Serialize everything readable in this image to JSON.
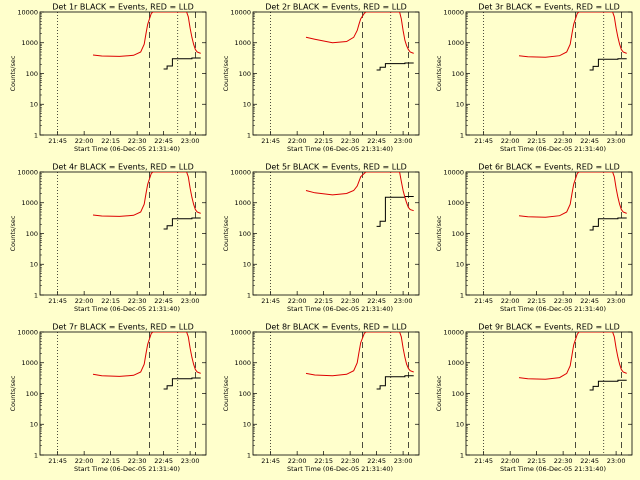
{
  "colors": {
    "background": "#ffffcc",
    "events": "#000000",
    "lld": "#dd0000"
  },
  "chart_data": [
    {
      "type": "line",
      "title": "Det 1r BLACK = Events, RED = LLD",
      "xlabel": "Start Time (06-Dec-05 21:31:40)",
      "ylabel": "Counts/sec",
      "y_scale": "log",
      "ylim": [
        1,
        10000
      ],
      "xticks": [
        "21:45",
        "22:00",
        "22:15",
        "22:30",
        "22:45",
        "23:00"
      ],
      "yticks": [
        "1",
        "10",
        "100",
        "1000",
        "10000"
      ],
      "grid": false,
      "series": [
        {
          "name": "Events",
          "color": "#000000",
          "x": [
            "22:45",
            "22:47",
            "22:47",
            "22:50",
            "22:50",
            "23:01",
            "23:01",
            "23:06"
          ],
          "y": [
            140,
            140,
            175,
            175,
            300,
            300,
            320,
            320
          ]
        },
        {
          "name": "LLD",
          "color": "#dd0000",
          "x": [
            "22:05",
            "22:10",
            "22:20",
            "22:28",
            "22:32",
            "22:34",
            "22:35",
            "22:36",
            "22:38",
            "22:39",
            "22:58",
            "22:59",
            "23:00",
            "23:01",
            "23:02",
            "23:03",
            "23:04",
            "23:06"
          ],
          "y": [
            400,
            370,
            360,
            390,
            500,
            900,
            2000,
            4000,
            9000,
            10000,
            10000,
            7000,
            3000,
            1500,
            900,
            600,
            500,
            450
          ]
        }
      ]
    },
    {
      "type": "line",
      "title": "Det 2r BLACK = Events, RED = LLD",
      "xlabel": "Start Time (06-Dec-05 21:31:40)",
      "ylabel": "Counts/sec",
      "y_scale": "log",
      "ylim": [
        1,
        10000
      ],
      "xticks": [
        "21:45",
        "22:00",
        "22:15",
        "22:30",
        "22:45",
        "23:00"
      ],
      "yticks": [
        "1",
        "10",
        "100",
        "1000",
        "10000"
      ],
      "grid": false,
      "series": [
        {
          "name": "Events",
          "color": "#000000",
          "x": [
            "22:45",
            "22:47",
            "22:47",
            "22:50",
            "22:50",
            "23:01",
            "23:01",
            "23:06"
          ],
          "y": [
            130,
            130,
            160,
            160,
            210,
            210,
            220,
            220
          ]
        },
        {
          "name": "LLD",
          "color": "#dd0000",
          "x": [
            "22:05",
            "22:10",
            "22:20",
            "22:28",
            "22:32",
            "22:34",
            "22:35",
            "22:36",
            "22:38",
            "22:39",
            "22:58",
            "22:59",
            "23:00",
            "23:01",
            "23:02",
            "23:03",
            "23:04",
            "23:06"
          ],
          "y": [
            1500,
            1300,
            1000,
            1100,
            1500,
            2500,
            4000,
            6000,
            9000,
            10000,
            10000,
            6000,
            2500,
            1200,
            800,
            600,
            500,
            450
          ]
        }
      ]
    },
    {
      "type": "line",
      "title": "Det 3r BLACK = Events, RED = LLD",
      "xlabel": "Start Time (06-Dec-05 21:31:40)",
      "ylabel": "Counts/sec",
      "y_scale": "log",
      "ylim": [
        1,
        10000
      ],
      "xticks": [
        "21:45",
        "22:00",
        "22:15",
        "22:30",
        "22:45",
        "23:00"
      ],
      "yticks": [
        "1",
        "10",
        "100",
        "1000",
        "10000"
      ],
      "grid": false,
      "series": [
        {
          "name": "Events",
          "color": "#000000",
          "x": [
            "22:45",
            "22:47",
            "22:47",
            "22:50",
            "22:50",
            "23:01",
            "23:01",
            "23:06"
          ],
          "y": [
            130,
            130,
            170,
            170,
            290,
            290,
            300,
            300
          ]
        },
        {
          "name": "LLD",
          "color": "#dd0000",
          "x": [
            "22:05",
            "22:10",
            "22:20",
            "22:28",
            "22:32",
            "22:34",
            "22:35",
            "22:36",
            "22:38",
            "22:39",
            "22:58",
            "22:59",
            "23:00",
            "23:01",
            "23:02",
            "23:03",
            "23:04",
            "23:06"
          ],
          "y": [
            380,
            350,
            340,
            380,
            500,
            900,
            2000,
            4000,
            9000,
            10000,
            10000,
            7000,
            3000,
            1500,
            900,
            600,
            500,
            450
          ]
        }
      ]
    },
    {
      "type": "line",
      "title": "Det 4r BLACK = Events, RED = LLD",
      "xlabel": "Start Time (06-Dec-05 21:31:40)",
      "ylabel": "Counts/sec",
      "y_scale": "log",
      "ylim": [
        1,
        10000
      ],
      "xticks": [
        "21:45",
        "22:00",
        "22:15",
        "22:30",
        "22:45",
        "23:00"
      ],
      "yticks": [
        "1",
        "10",
        "100",
        "1000",
        "10000"
      ],
      "grid": false,
      "series": [
        {
          "name": "Events",
          "color": "#000000",
          "x": [
            "22:45",
            "22:47",
            "22:47",
            "22:50",
            "22:50",
            "23:01",
            "23:01",
            "23:06"
          ],
          "y": [
            140,
            140,
            180,
            180,
            300,
            300,
            320,
            320
          ]
        },
        {
          "name": "LLD",
          "color": "#dd0000",
          "x": [
            "22:05",
            "22:10",
            "22:20",
            "22:28",
            "22:32",
            "22:34",
            "22:35",
            "22:36",
            "22:38",
            "22:39",
            "22:58",
            "22:59",
            "23:00",
            "23:01",
            "23:02",
            "23:03",
            "23:04",
            "23:06"
          ],
          "y": [
            400,
            370,
            360,
            390,
            500,
            900,
            2000,
            4000,
            9000,
            10000,
            10000,
            7000,
            3000,
            1500,
            900,
            600,
            500,
            450
          ]
        }
      ]
    },
    {
      "type": "line",
      "title": "Det 5r BLACK = Events, RED = LLD",
      "xlabel": "Start Time (06-Dec-05 21:31:40)",
      "ylabel": "Counts/sec",
      "y_scale": "log",
      "ylim": [
        1,
        10000
      ],
      "xticks": [
        "21:45",
        "22:00",
        "22:15",
        "22:30",
        "22:45",
        "23:00"
      ],
      "yticks": [
        "1",
        "10",
        "100",
        "1000",
        "10000"
      ],
      "grid": false,
      "series": [
        {
          "name": "Events",
          "color": "#000000",
          "x": [
            "22:45",
            "22:47",
            "22:47",
            "22:50",
            "22:50",
            "23:01",
            "23:01",
            "23:06"
          ],
          "y": [
            170,
            170,
            250,
            250,
            1500,
            1500,
            1600,
            1600
          ]
        },
        {
          "name": "LLD",
          "color": "#dd0000",
          "x": [
            "22:05",
            "22:10",
            "22:20",
            "22:28",
            "22:32",
            "22:34",
            "22:35",
            "22:36",
            "22:38",
            "22:39",
            "22:58",
            "22:59",
            "23:00",
            "23:01",
            "23:02",
            "23:03",
            "23:04",
            "23:06"
          ],
          "y": [
            2500,
            2100,
            1800,
            2000,
            2500,
            3500,
            5000,
            7000,
            9000,
            10000,
            10000,
            5000,
            2500,
            1500,
            1000,
            700,
            600,
            550
          ]
        }
      ]
    },
    {
      "type": "line",
      "title": "Det 6r BLACK = Events, RED = LLD",
      "xlabel": "Start Time (06-Dec-05 21:31:40)",
      "ylabel": "Counts/sec",
      "y_scale": "log",
      "ylim": [
        1,
        10000
      ],
      "xticks": [
        "21:45",
        "22:00",
        "22:15",
        "22:30",
        "22:45",
        "23:00"
      ],
      "yticks": [
        "1",
        "10",
        "100",
        "1000",
        "10000"
      ],
      "grid": false,
      "series": [
        {
          "name": "Events",
          "color": "#000000",
          "x": [
            "22:45",
            "22:47",
            "22:47",
            "22:50",
            "22:50",
            "23:01",
            "23:01",
            "23:06"
          ],
          "y": [
            130,
            130,
            170,
            170,
            300,
            300,
            320,
            320
          ]
        },
        {
          "name": "LLD",
          "color": "#dd0000",
          "x": [
            "22:05",
            "22:10",
            "22:20",
            "22:28",
            "22:32",
            "22:34",
            "22:35",
            "22:36",
            "22:38",
            "22:39",
            "22:58",
            "22:59",
            "23:00",
            "23:01",
            "23:02",
            "23:03",
            "23:04",
            "23:06"
          ],
          "y": [
            380,
            350,
            340,
            380,
            500,
            900,
            2000,
            4000,
            9000,
            10000,
            10000,
            7000,
            3000,
            1500,
            900,
            600,
            500,
            450
          ]
        }
      ]
    },
    {
      "type": "line",
      "title": "Det 7r BLACK = Events, RED = LLD",
      "xlabel": "Start Time (06-Dec-05 21:31:40)",
      "ylabel": "Counts/sec",
      "y_scale": "log",
      "ylim": [
        1,
        10000
      ],
      "xticks": [
        "21:45",
        "22:00",
        "22:15",
        "22:30",
        "22:45",
        "23:00"
      ],
      "yticks": [
        "1",
        "10",
        "100",
        "1000",
        "10000"
      ],
      "grid": false,
      "series": [
        {
          "name": "Events",
          "color": "#000000",
          "x": [
            "22:45",
            "22:47",
            "22:47",
            "22:50",
            "22:50",
            "23:01",
            "23:01",
            "23:06"
          ],
          "y": [
            140,
            140,
            180,
            180,
            300,
            300,
            320,
            320
          ]
        },
        {
          "name": "LLD",
          "color": "#dd0000",
          "x": [
            "22:05",
            "22:10",
            "22:20",
            "22:28",
            "22:32",
            "22:34",
            "22:35",
            "22:36",
            "22:38",
            "22:39",
            "22:58",
            "22:59",
            "23:00",
            "23:01",
            "23:02",
            "23:03",
            "23:04",
            "23:06"
          ],
          "y": [
            420,
            380,
            360,
            390,
            500,
            900,
            2000,
            4000,
            9000,
            10000,
            10000,
            7000,
            3000,
            1500,
            900,
            600,
            500,
            450
          ]
        }
      ]
    },
    {
      "type": "line",
      "title": "Det 8r BLACK = Events, RED = LLD",
      "xlabel": "Start Time (06-Dec-05 21:31:40)",
      "ylabel": "Counts/sec",
      "y_scale": "log",
      "ylim": [
        1,
        10000
      ],
      "xticks": [
        "21:45",
        "22:00",
        "22:15",
        "22:30",
        "22:45",
        "23:00"
      ],
      "yticks": [
        "1",
        "10",
        "100",
        "1000",
        "10000"
      ],
      "grid": false,
      "series": [
        {
          "name": "Events",
          "color": "#000000",
          "x": [
            "22:45",
            "22:47",
            "22:47",
            "22:50",
            "22:50",
            "23:01",
            "23:01",
            "23:06"
          ],
          "y": [
            140,
            140,
            180,
            180,
            350,
            350,
            380,
            380
          ]
        },
        {
          "name": "LLD",
          "color": "#dd0000",
          "x": [
            "22:05",
            "22:10",
            "22:20",
            "22:28",
            "22:32",
            "22:34",
            "22:35",
            "22:36",
            "22:38",
            "22:39",
            "22:58",
            "22:59",
            "23:00",
            "23:01",
            "23:02",
            "23:03",
            "23:04",
            "23:06"
          ],
          "y": [
            450,
            400,
            380,
            420,
            550,
            1000,
            2200,
            4500,
            9000,
            10000,
            10000,
            7000,
            3000,
            1500,
            900,
            650,
            550,
            500
          ]
        }
      ]
    },
    {
      "type": "line",
      "title": "Det 9r BLACK = Events, RED = LLD",
      "xlabel": "Start Time (06-Dec-05 21:31:40)",
      "ylabel": "Counts/sec",
      "y_scale": "log",
      "ylim": [
        1,
        10000
      ],
      "xticks": [
        "21:45",
        "22:00",
        "22:15",
        "22:30",
        "22:45",
        "23:00"
      ],
      "yticks": [
        "1",
        "10",
        "100",
        "1000",
        "10000"
      ],
      "grid": false,
      "series": [
        {
          "name": "Events",
          "color": "#000000",
          "x": [
            "22:45",
            "22:47",
            "22:47",
            "22:50",
            "22:50",
            "23:01",
            "23:01",
            "23:06"
          ],
          "y": [
            130,
            130,
            170,
            170,
            250,
            250,
            270,
            270
          ]
        },
        {
          "name": "LLD",
          "color": "#dd0000",
          "x": [
            "22:05",
            "22:10",
            "22:20",
            "22:28",
            "22:32",
            "22:34",
            "22:35",
            "22:36",
            "22:38",
            "22:39",
            "22:58",
            "22:59",
            "23:00",
            "23:01",
            "23:02",
            "23:03",
            "23:04",
            "23:06"
          ],
          "y": [
            330,
            300,
            290,
            330,
            450,
            800,
            1800,
            3800,
            8500,
            10000,
            10000,
            7000,
            3000,
            1500,
            900,
            600,
            500,
            450
          ]
        }
      ]
    }
  ]
}
